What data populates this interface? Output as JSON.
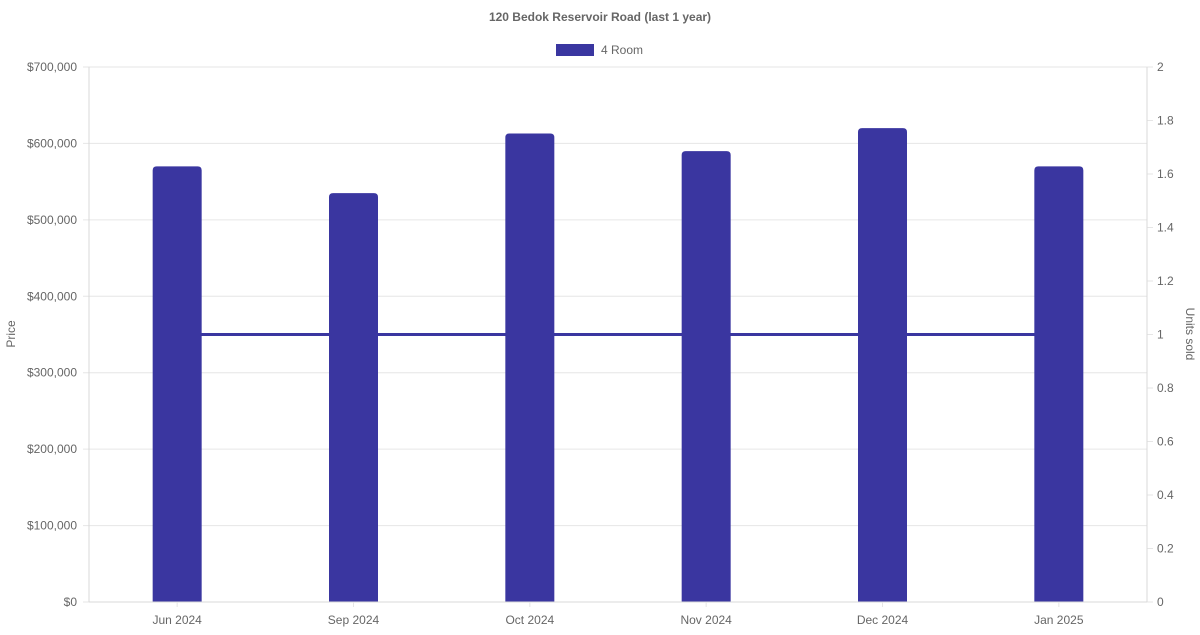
{
  "chart_data": {
    "type": "bar",
    "title": "120 Bedok Reservoir Road (last 1 year)",
    "categories": [
      "Jun 2024",
      "Sep 2024",
      "Oct 2024",
      "Nov 2024",
      "Dec 2024",
      "Jan 2025"
    ],
    "series": [
      {
        "name": "4 Room",
        "type": "bar",
        "axis": "left",
        "values": [
          570000,
          535000,
          613000,
          590000,
          620000,
          570000
        ],
        "color": "#3a36a0"
      },
      {
        "type": "line",
        "axis": "right",
        "values": [
          1,
          1,
          1,
          1,
          1,
          1
        ],
        "color": "#3a36a0"
      }
    ],
    "y_left": {
      "label": "Price",
      "min": 0,
      "max": 700000,
      "ticks": [
        0,
        100000,
        200000,
        300000,
        400000,
        500000,
        600000,
        700000
      ],
      "tick_labels": [
        "$0",
        "$100,000",
        "$200,000",
        "$300,000",
        "$400,000",
        "$500,000",
        "$600,000",
        "$700,000"
      ]
    },
    "y_right": {
      "label": "Units sold",
      "min": 0,
      "max": 2,
      "ticks": [
        0,
        0.2,
        0.4,
        0.6,
        0.8,
        1,
        1.2,
        1.4,
        1.6,
        1.8,
        2
      ],
      "tick_labels": [
        "0",
        "0.2",
        "0.4",
        "0.6",
        "0.8",
        "1",
        "1.2",
        "1.4",
        "1.6",
        "1.8",
        "2"
      ]
    },
    "grid": true,
    "legend": "top"
  }
}
